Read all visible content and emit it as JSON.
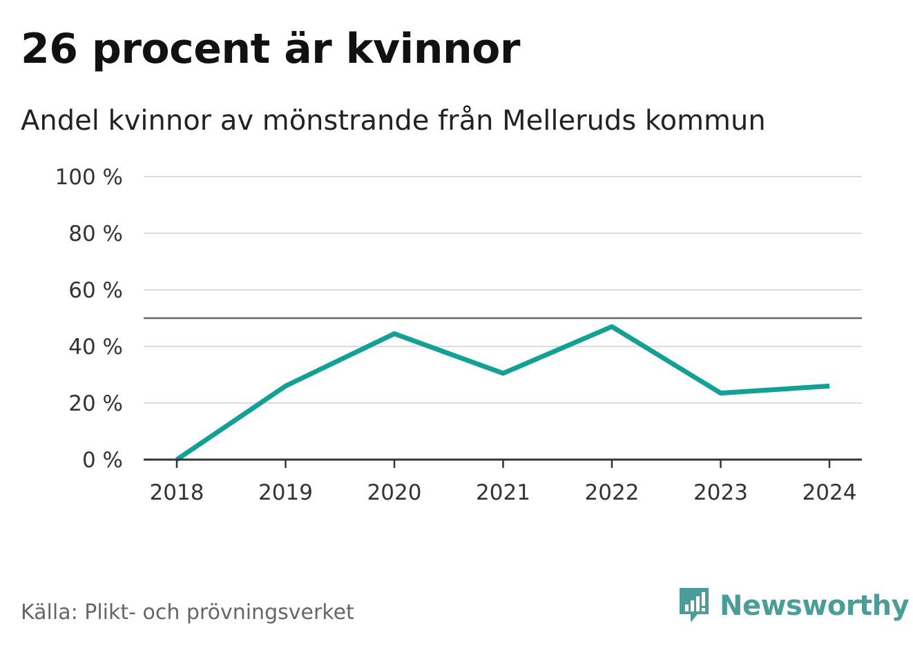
{
  "title": "26 procent är kvinnor",
  "subtitle": "Andel kvinnor av mönstrande från Melleruds kommun",
  "source": "Källa: Plikt- och prövningsverket",
  "brand": {
    "name": "Newsworthy",
    "color": "#4a9d98"
  },
  "colors": {
    "line": "#13a095",
    "grid": "#dddddd",
    "reference": "#666666",
    "axis": "#333333"
  },
  "chart_data": {
    "type": "line",
    "categories": [
      "2018",
      "2019",
      "2020",
      "2021",
      "2022",
      "2023",
      "2024"
    ],
    "series": [
      {
        "values": [
          0,
          26,
          44.5,
          30.5,
          47,
          23.5,
          26
        ]
      }
    ],
    "y_ticks": [
      0,
      20,
      40,
      60,
      80,
      100
    ],
    "y_tick_labels": [
      "0 %",
      "20 %",
      "40 %",
      "60 %",
      "80 %",
      "100 %"
    ],
    "ylim": [
      0,
      100
    ],
    "reference_line": 50,
    "grid": true
  }
}
